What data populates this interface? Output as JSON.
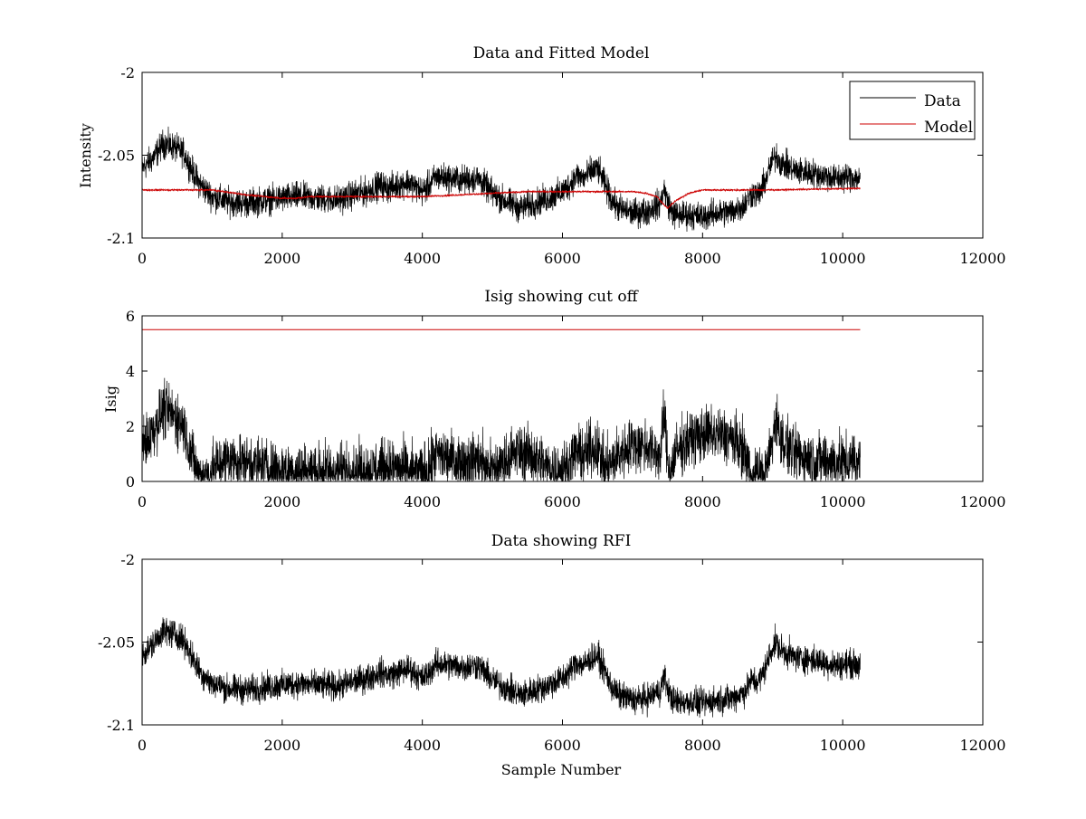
{
  "chart_data": [
    {
      "type": "line",
      "title": "Data and Fitted Model",
      "xlabel": "",
      "ylabel": "Intensity",
      "xlim": [
        0,
        12000
      ],
      "ylim": [
        -2.1,
        -2
      ],
      "xticks": [
        "0",
        "2000",
        "4000",
        "6000",
        "8000",
        "10000",
        "12000"
      ],
      "yticks": [
        "-2",
        "-2.05",
        "-2.1"
      ],
      "legend": "top-right",
      "grid": false,
      "series": [
        {
          "name": "Data",
          "color": "#000000",
          "noise": 0.006,
          "x": [
            0,
            150,
            300,
            450,
            600,
            700,
            800,
            900,
            1000,
            1200,
            1500,
            1800,
            2000,
            2200,
            2500,
            2800,
            3000,
            3200,
            3400,
            3500,
            3600,
            3800,
            4000,
            4100,
            4200,
            4400,
            4600,
            4800,
            5000,
            5200,
            5400,
            5600,
            5800,
            6000,
            6100,
            6200,
            6300,
            6400,
            6500,
            6600,
            6700,
            6800,
            7000,
            7200,
            7400,
            7450,
            7500,
            7550,
            7600,
            7800,
            8000,
            8200,
            8400,
            8600,
            8700,
            8800,
            8900,
            9000,
            9050,
            9100,
            9300,
            9600,
            9900,
            10100,
            10250
          ],
          "y": [
            -2.058,
            -2.052,
            -2.043,
            -2.045,
            -2.049,
            -2.058,
            -2.066,
            -2.071,
            -2.075,
            -2.078,
            -2.079,
            -2.077,
            -2.076,
            -2.075,
            -2.076,
            -2.077,
            -2.074,
            -2.072,
            -2.068,
            -2.07,
            -2.069,
            -2.066,
            -2.072,
            -2.068,
            -2.063,
            -2.064,
            -2.065,
            -2.064,
            -2.073,
            -2.078,
            -2.082,
            -2.079,
            -2.076,
            -2.072,
            -2.068,
            -2.062,
            -2.064,
            -2.06,
            -2.058,
            -2.067,
            -2.077,
            -2.082,
            -2.085,
            -2.084,
            -2.079,
            -2.07,
            -2.078,
            -2.083,
            -2.086,
            -2.086,
            -2.087,
            -2.085,
            -2.084,
            -2.08,
            -2.073,
            -2.074,
            -2.065,
            -2.053,
            -2.05,
            -2.054,
            -2.059,
            -2.061,
            -2.064,
            -2.063,
            -2.064
          ]
        },
        {
          "name": "Model",
          "color": "#cc0000",
          "noise": 0.0004,
          "x": [
            0,
            500,
            1000,
            1500,
            2000,
            2200,
            2400,
            2600,
            3000,
            4000,
            4500,
            5000,
            5500,
            6000,
            6500,
            7000,
            7200,
            7350,
            7450,
            7500,
            7600,
            7800,
            8000,
            9000,
            10250
          ],
          "y": [
            -2.071,
            -2.071,
            -2.071,
            -2.074,
            -2.076,
            -2.076,
            -2.075,
            -2.075,
            -2.075,
            -2.075,
            -2.074,
            -2.073,
            -2.072,
            -2.072,
            -2.072,
            -2.072,
            -2.073,
            -2.075,
            -2.08,
            -2.082,
            -2.078,
            -2.073,
            -2.071,
            -2.071,
            -2.07
          ]
        }
      ]
    },
    {
      "type": "line",
      "title": "Isig showing cut off",
      "xlabel": "",
      "ylabel": "Isig",
      "xlim": [
        0,
        12000
      ],
      "ylim": [
        0,
        6
      ],
      "xticks": [
        "0",
        "2000",
        "4000",
        "6000",
        "8000",
        "10000",
        "12000"
      ],
      "yticks": [
        "0",
        "2",
        "4",
        "6"
      ],
      "grid": false,
      "series": [
        {
          "color": "#000000",
          "noise": 0.7,
          "x": [
            0,
            150,
            300,
            450,
            600,
            700,
            800,
            900,
            1000,
            1200,
            1500,
            1800,
            2000,
            2200,
            2500,
            2800,
            3000,
            3200,
            3400,
            3500,
            3600,
            3800,
            4000,
            4100,
            4200,
            4400,
            4600,
            4800,
            5000,
            5200,
            5400,
            5600,
            5800,
            6000,
            6100,
            6200,
            6300,
            6400,
            6500,
            6600,
            6700,
            6800,
            7000,
            7200,
            7400,
            7450,
            7500,
            7550,
            7600,
            7800,
            8000,
            8200,
            8400,
            8600,
            8700,
            8800,
            8900,
            9000,
            9050,
            9100,
            9300,
            9600,
            9900,
            10100,
            10250
          ],
          "y": [
            1.3,
            1.8,
            2.6,
            2.4,
            2.0,
            1.0,
            0.2,
            0.1,
            0.5,
            0.8,
            0.7,
            0.5,
            0.4,
            0.4,
            0.4,
            0.4,
            0.4,
            0.4,
            0.5,
            0.5,
            0.5,
            0.4,
            0.3,
            0.5,
            1.0,
            0.8,
            0.7,
            0.8,
            0.4,
            0.8,
            1.1,
            0.9,
            0.5,
            0.4,
            0.6,
            1.1,
            0.9,
            1.2,
            1.2,
            0.5,
            0.6,
            1.0,
            1.3,
            1.3,
            0.9,
            2.5,
            0.8,
            0.3,
            1.0,
            1.5,
            1.7,
            1.7,
            1.6,
            1.1,
            0.1,
            0.2,
            0.3,
            1.5,
            2.4,
            1.6,
            1.0,
            0.8,
            0.7,
            0.7,
            0.7
          ]
        },
        {
          "color": "#cc0000",
          "noise": 0,
          "x": [
            0,
            10250
          ],
          "y": [
            5.5,
            5.5
          ]
        }
      ]
    },
    {
      "type": "line",
      "title": "Data showing RFI",
      "xlabel": "Sample Number",
      "ylabel": "",
      "xlim": [
        0,
        12000
      ],
      "ylim": [
        -2.1,
        -2
      ],
      "xticks": [
        "0",
        "2000",
        "4000",
        "6000",
        "8000",
        "10000",
        "12000"
      ],
      "yticks": [
        "-2",
        "-2.05",
        "-2.1"
      ],
      "grid": false,
      "series": [
        {
          "color": "#000000",
          "noise": 0.006,
          "x": [
            0,
            150,
            300,
            450,
            600,
            700,
            800,
            900,
            1000,
            1200,
            1500,
            1800,
            2000,
            2200,
            2500,
            2800,
            3000,
            3200,
            3400,
            3500,
            3600,
            3800,
            4000,
            4100,
            4200,
            4400,
            4600,
            4800,
            5000,
            5200,
            5400,
            5600,
            5800,
            6000,
            6100,
            6200,
            6300,
            6400,
            6500,
            6600,
            6700,
            6800,
            7000,
            7200,
            7400,
            7450,
            7500,
            7550,
            7600,
            7800,
            8000,
            8200,
            8400,
            8600,
            8700,
            8800,
            8900,
            9000,
            9050,
            9100,
            9300,
            9600,
            9900,
            10100,
            10250
          ],
          "y": [
            -2.058,
            -2.052,
            -2.043,
            -2.045,
            -2.049,
            -2.058,
            -2.066,
            -2.071,
            -2.075,
            -2.078,
            -2.079,
            -2.077,
            -2.076,
            -2.075,
            -2.076,
            -2.077,
            -2.074,
            -2.072,
            -2.068,
            -2.07,
            -2.069,
            -2.066,
            -2.072,
            -2.068,
            -2.063,
            -2.064,
            -2.065,
            -2.064,
            -2.073,
            -2.078,
            -2.082,
            -2.079,
            -2.076,
            -2.072,
            -2.068,
            -2.062,
            -2.064,
            -2.06,
            -2.058,
            -2.067,
            -2.077,
            -2.082,
            -2.085,
            -2.084,
            -2.079,
            -2.07,
            -2.078,
            -2.083,
            -2.086,
            -2.086,
            -2.087,
            -2.085,
            -2.084,
            -2.08,
            -2.073,
            -2.074,
            -2.065,
            -2.053,
            -2.05,
            -2.054,
            -2.059,
            -2.061,
            -2.064,
            -2.063,
            -2.064
          ]
        }
      ]
    }
  ]
}
